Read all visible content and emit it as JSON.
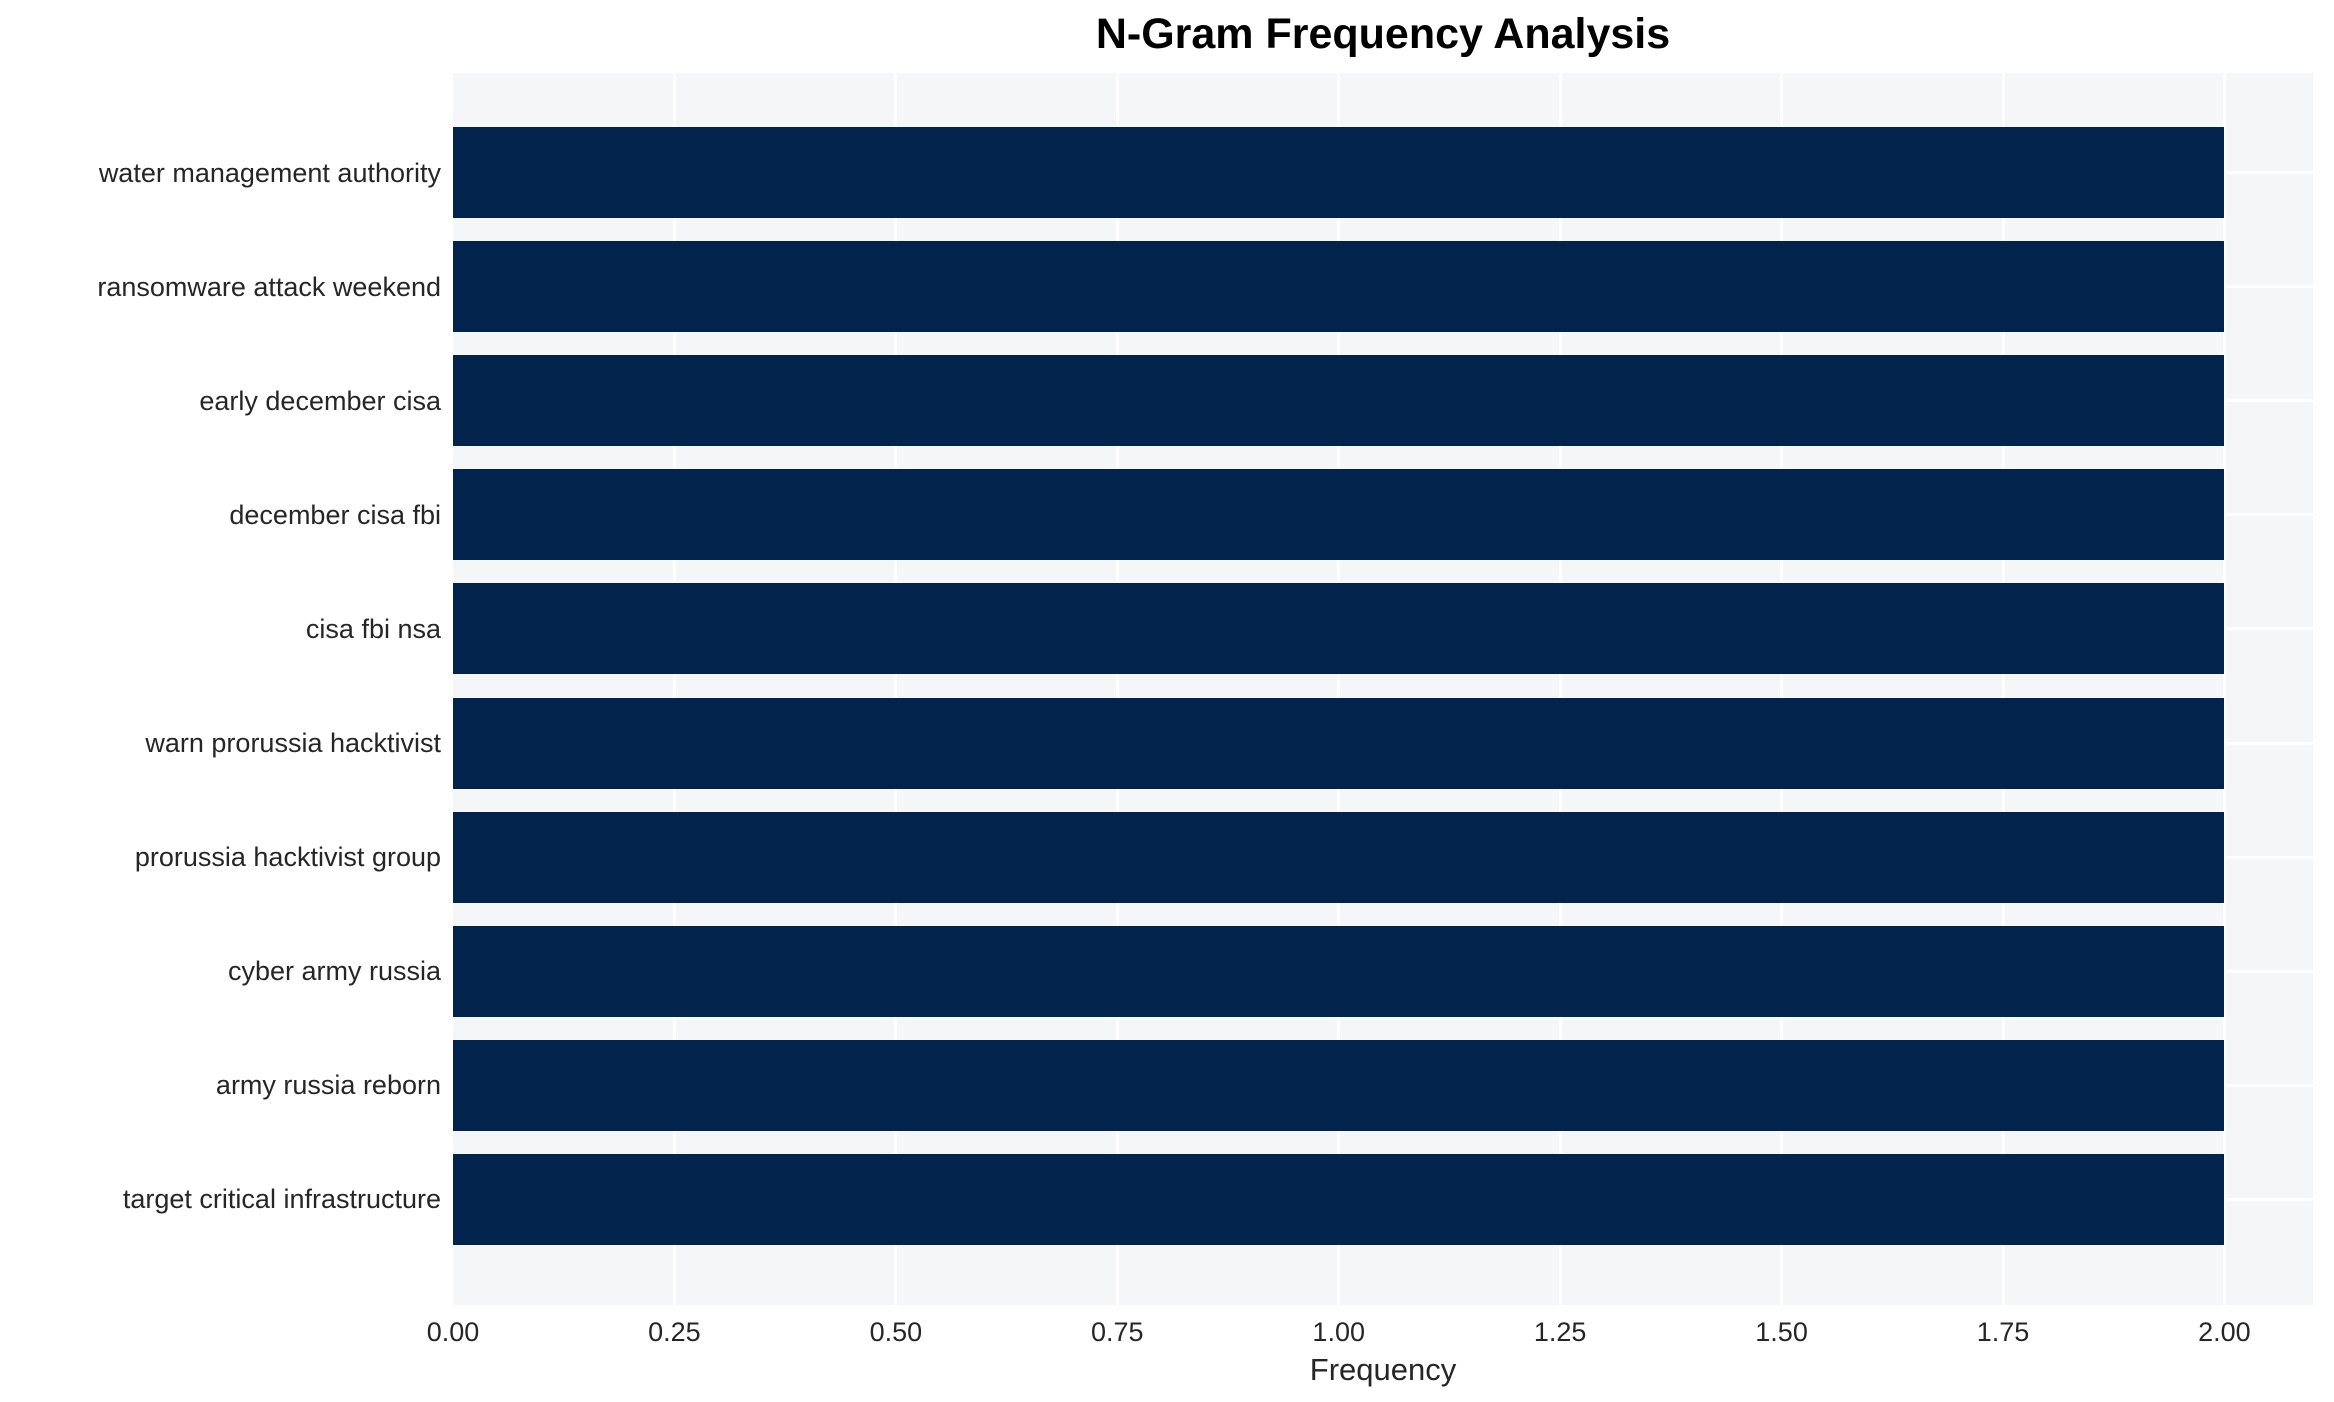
{
  "title": "N-Gram Frequency Analysis",
  "chart_data": {
    "type": "bar",
    "orientation": "horizontal",
    "title": "N-Gram Frequency Analysis",
    "xlabel": "Frequency",
    "ylabel": "",
    "categories": [
      "water management authority",
      "ransomware attack weekend",
      "early december cisa",
      "december cisa fbi",
      "cisa fbi nsa",
      "warn prorussia hacktivist",
      "prorussia hacktivist group",
      "cyber army russia",
      "army russia reborn",
      "target critical infrastructure"
    ],
    "values": [
      2,
      2,
      2,
      2,
      2,
      2,
      2,
      2,
      2,
      2
    ],
    "xlim": [
      0,
      2.1
    ],
    "xticks": {
      "values": [
        0,
        0.25,
        0.5,
        0.75,
        1.0,
        1.25,
        1.5,
        1.75,
        2.0
      ],
      "labels": [
        "0.00",
        "0.25",
        "0.50",
        "0.75",
        "1.00",
        "1.25",
        "1.50",
        "1.75",
        "2.00"
      ]
    },
    "grid": true,
    "legend": "none",
    "colors": {
      "bar": "#02244c",
      "plot_bg": "#f5f6f7",
      "grid": "#ffffff",
      "tick_text": "#262626",
      "title_text": "#000000",
      "page_bg": "#ffffff"
    }
  }
}
